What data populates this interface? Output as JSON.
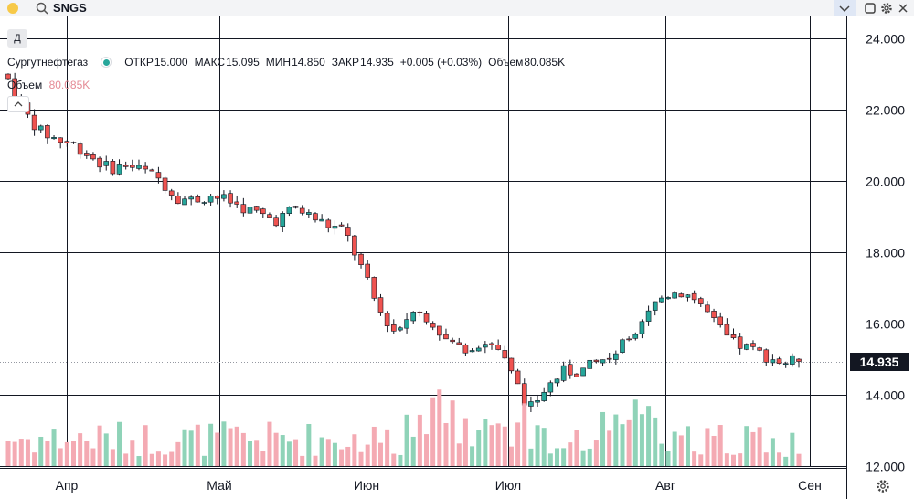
{
  "toolbar": {
    "symbol": "SNGS",
    "icons": [
      "search-icon",
      "chevron-down-icon",
      "square-icon",
      "gear-icon",
      "close-icon"
    ]
  },
  "interval_button": "Д",
  "legend": {
    "symbol_name": "Сургутнефтегаз",
    "status_color": "#26a69a",
    "open_label": "ОТКР",
    "open": "15.000",
    "high_label": "МАКС",
    "high": "15.095",
    "low_label": "МИН",
    "low": "14.850",
    "close_label": "ЗАКР",
    "close": "14.935",
    "change": "+0.005 (+0.03%)",
    "volume_label": "Объем",
    "volume": "80.085K"
  },
  "volume_legend": {
    "label": "Объем",
    "value": "80.085K"
  },
  "last_price": "14.935",
  "colors": {
    "up": "#26a69a",
    "down": "#ef5350",
    "vol_up": "#8fd3b8",
    "vol_down": "#f4aab3",
    "grid": "#131722"
  },
  "chart_data": {
    "type": "candlestick",
    "x_axis": {
      "ticks": [
        "Апр",
        "Май",
        "Июн",
        "Июл",
        "Авг",
        "Сен"
      ]
    },
    "y_axis": {
      "ticks": [
        "12.000",
        "14.000",
        "16.000",
        "18.000",
        "20.000",
        "22.000",
        "24.000"
      ],
      "range": [
        12.0,
        24.0
      ]
    },
    "grid": true,
    "price_path": [
      [
        23.0,
        22.7
      ],
      [
        22.0,
        21.8
      ],
      [
        21.5,
        21.2
      ],
      [
        21.3,
        21.0
      ],
      [
        21.2,
        20.8
      ],
      [
        20.9,
        20.4
      ],
      [
        20.5,
        20.2
      ],
      [
        20.6,
        20.3
      ],
      [
        20.4,
        20.2
      ],
      [
        20.3,
        19.8
      ],
      [
        19.7,
        19.4
      ],
      [
        19.6,
        19.3
      ],
      [
        20.0,
        19.2
      ],
      [
        19.6,
        19.3
      ],
      [
        19.4,
        19.1
      ],
      [
        19.2,
        18.9
      ],
      [
        19.0,
        18.8
      ],
      [
        19.4,
        19.1
      ],
      [
        19.2,
        18.8
      ],
      [
        18.9,
        18.6
      ],
      [
        18.8,
        18.4
      ],
      [
        17.9,
        17.2
      ],
      [
        16.6,
        16.2
      ],
      [
        16.0,
        15.5
      ],
      [
        16.5,
        16.2
      ],
      [
        16.4,
        16.0
      ],
      [
        15.7,
        15.4
      ],
      [
        15.4,
        15.2
      ],
      [
        15.6,
        15.3
      ],
      [
        15.5,
        15.3
      ],
      [
        14.9,
        14.1
      ],
      [
        13.9,
        13.3
      ],
      [
        14.4,
        14.0
      ],
      [
        14.8,
        14.5
      ],
      [
        14.8,
        14.5
      ],
      [
        15.0,
        14.8
      ],
      [
        15.3,
        15.0
      ],
      [
        15.9,
        15.4
      ],
      [
        16.6,
        16.2
      ],
      [
        16.9,
        16.7
      ],
      [
        17.0,
        16.8
      ],
      [
        16.8,
        16.5
      ],
      [
        16.2,
        15.8
      ],
      [
        15.6,
        15.3
      ],
      [
        15.4,
        15.2
      ],
      [
        15.2,
        15.0
      ],
      [
        15.0,
        14.8
      ],
      [
        15.0,
        14.935
      ]
    ],
    "volume_max": 100
  }
}
